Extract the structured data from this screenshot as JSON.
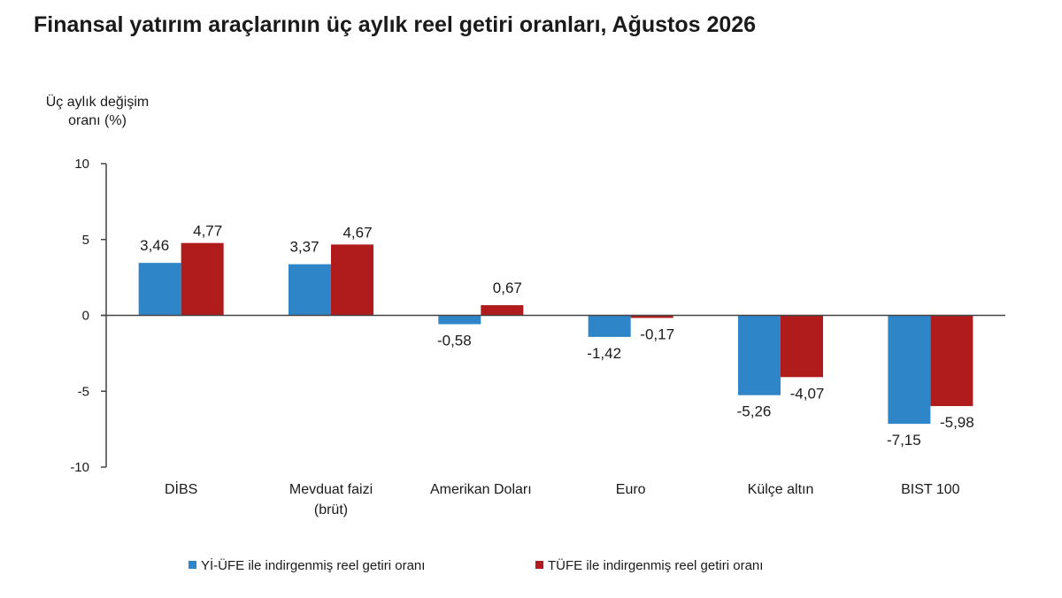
{
  "title": "Finansal yatırım araçlarının üç aylık reel getiri oranları, Ağustos 2026",
  "chart_data": {
    "type": "bar",
    "title": "Finansal yatırım araçlarının üç aylık reel getiri oranları, Ağustos 2026",
    "ylabel": [
      "Üç aylık değişim",
      "oranı (%)"
    ],
    "xlabel": "",
    "ylim": [
      -10,
      10
    ],
    "yticks": [
      "10",
      "5",
      "0",
      "-5",
      "-10"
    ],
    "ytick_values": [
      10,
      5,
      0,
      -5,
      -10
    ],
    "categories": [
      [
        "DİBS"
      ],
      [
        "Mevduat faizi",
        "(brüt)"
      ],
      [
        "Amerikan Doları"
      ],
      [
        "Euro"
      ],
      [
        "Külçe altın"
      ],
      [
        "BIST 100"
      ]
    ],
    "series": [
      {
        "name": "Yİ-ÜFE ile indirgenmiş reel getiri oranı",
        "color": "#2e86c8",
        "values": [
          3.46,
          3.37,
          -0.58,
          -1.42,
          -5.26,
          -7.15
        ],
        "labels": [
          "3,46",
          "3,37",
          "-0,58",
          "-1,42",
          "-5,26",
          "-7,15"
        ]
      },
      {
        "name": "TÜFE ile indirgenmiş reel getiri oranı",
        "color": "#b01c1c",
        "values": [
          4.77,
          4.67,
          0.67,
          -0.17,
          -4.07,
          -5.98
        ],
        "labels": [
          "4,77",
          "4,67",
          "0,67",
          "-0,17",
          "-4,07",
          "-5,98"
        ]
      }
    ],
    "legend_position": "bottom",
    "grid": false
  }
}
